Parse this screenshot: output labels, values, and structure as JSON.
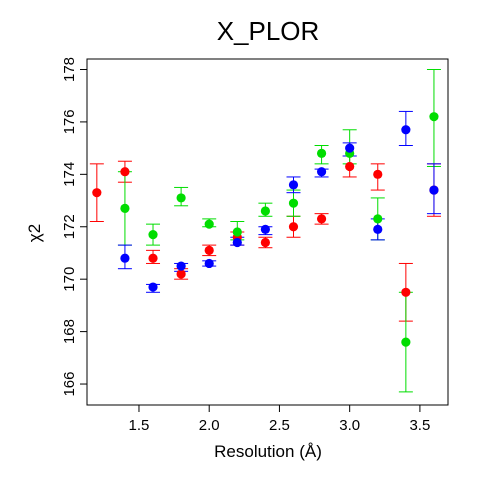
{
  "chart_data": {
    "type": "scatter",
    "title": "X_PLOR",
    "xlabel": "Resolution (Å)",
    "ylabel": "χ2",
    "xlim": [
      1.13,
      3.7
    ],
    "ylim": [
      165.2,
      178.4
    ],
    "xticks": [
      1.5,
      2.0,
      2.5,
      3.0,
      3.5
    ],
    "yticks": [
      166,
      168,
      170,
      172,
      174,
      176,
      178
    ],
    "grid": false,
    "series": [
      {
        "color": "#ff0000",
        "points": [
          {
            "x": 1.2,
            "y": 173.3,
            "lo": 172.2,
            "hi": 174.4
          },
          {
            "x": 1.4,
            "y": 174.1,
            "lo": 173.7,
            "hi": 174.5
          },
          {
            "x": 1.6,
            "y": 170.8,
            "lo": 170.6,
            "hi": 171.1
          },
          {
            "x": 1.8,
            "y": 170.2,
            "lo": 170.0,
            "hi": 170.4
          },
          {
            "x": 2.0,
            "y": 171.1,
            "lo": 170.9,
            "hi": 171.3
          },
          {
            "x": 2.2,
            "y": 171.6,
            "lo": 171.3,
            "hi": 171.8
          },
          {
            "x": 2.4,
            "y": 171.4,
            "lo": 171.2,
            "hi": 171.6
          },
          {
            "x": 2.6,
            "y": 172.0,
            "lo": 171.6,
            "hi": 172.4
          },
          {
            "x": 2.8,
            "y": 172.3,
            "lo": 172.1,
            "hi": 172.5
          },
          {
            "x": 3.0,
            "y": 174.3,
            "lo": 173.9,
            "hi": 174.7
          },
          {
            "x": 3.2,
            "y": 174.0,
            "lo": 173.4,
            "hi": 174.4
          },
          {
            "x": 3.4,
            "y": 169.5,
            "lo": 168.4,
            "hi": 170.6
          },
          {
            "x": 3.6,
            "y": 173.4,
            "lo": 172.4,
            "hi": 174.4
          }
        ]
      },
      {
        "color": "#00dd00",
        "points": [
          {
            "x": 1.4,
            "y": 172.7,
            "lo": 171.3,
            "hi": 174.1
          },
          {
            "x": 1.6,
            "y": 171.7,
            "lo": 171.3,
            "hi": 172.1
          },
          {
            "x": 1.8,
            "y": 173.1,
            "lo": 172.8,
            "hi": 173.5
          },
          {
            "x": 2.0,
            "y": 172.1,
            "lo": 172.0,
            "hi": 172.3
          },
          {
            "x": 2.2,
            "y": 171.8,
            "lo": 171.5,
            "hi": 172.2
          },
          {
            "x": 2.4,
            "y": 172.6,
            "lo": 172.4,
            "hi": 172.9
          },
          {
            "x": 2.6,
            "y": 172.9,
            "lo": 172.4,
            "hi": 173.4
          },
          {
            "x": 2.8,
            "y": 174.8,
            "lo": 174.4,
            "hi": 175.1
          },
          {
            "x": 3.0,
            "y": 174.8,
            "lo": 174.4,
            "hi": 175.7
          },
          {
            "x": 3.2,
            "y": 172.3,
            "lo": 171.5,
            "hi": 173.1
          },
          {
            "x": 3.4,
            "y": 167.6,
            "lo": 165.7,
            "hi": 169.5
          },
          {
            "x": 3.6,
            "y": 176.2,
            "lo": 174.3,
            "hi": 178.0
          }
        ]
      },
      {
        "color": "#0000ff",
        "points": [
          {
            "x": 1.4,
            "y": 170.8,
            "lo": 170.4,
            "hi": 171.3
          },
          {
            "x": 1.6,
            "y": 169.7,
            "lo": 169.5,
            "hi": 169.8
          },
          {
            "x": 1.8,
            "y": 170.5,
            "lo": 170.3,
            "hi": 170.6
          },
          {
            "x": 2.0,
            "y": 170.6,
            "lo": 170.5,
            "hi": 170.7
          },
          {
            "x": 2.2,
            "y": 171.4,
            "lo": 171.3,
            "hi": 171.6
          },
          {
            "x": 2.4,
            "y": 171.9,
            "lo": 171.7,
            "hi": 172.0
          },
          {
            "x": 2.6,
            "y": 173.6,
            "lo": 173.3,
            "hi": 173.9
          },
          {
            "x": 2.8,
            "y": 174.1,
            "lo": 173.9,
            "hi": 174.2
          },
          {
            "x": 3.0,
            "y": 175.0,
            "lo": 174.7,
            "hi": 175.2
          },
          {
            "x": 3.2,
            "y": 171.9,
            "lo": 171.5,
            "hi": 172.3
          },
          {
            "x": 3.4,
            "y": 175.7,
            "lo": 175.1,
            "hi": 176.4
          },
          {
            "x": 3.6,
            "y": 173.4,
            "lo": 172.5,
            "hi": 174.4
          }
        ]
      }
    ]
  }
}
